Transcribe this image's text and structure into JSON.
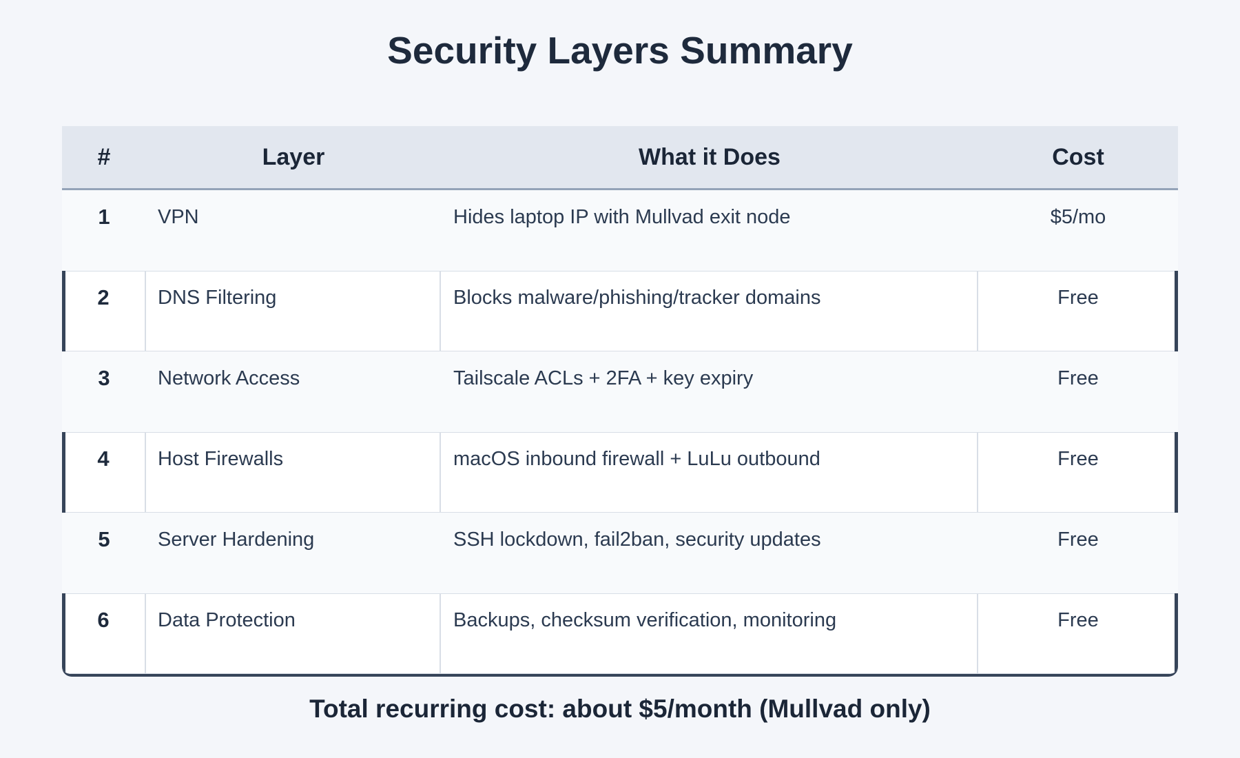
{
  "title": "Security Layers Summary",
  "table": {
    "columns": [
      "#",
      "Layer",
      "What it Does",
      "Cost"
    ],
    "rows": [
      {
        "num": "1",
        "layer": "VPN",
        "what": "Hides laptop IP with Mullvad exit node",
        "cost": "$5/mo"
      },
      {
        "num": "2",
        "layer": "DNS Filtering",
        "what": "Blocks malware/phishing/tracker domains",
        "cost": "Free"
      },
      {
        "num": "3",
        "layer": "Network Access",
        "what": "Tailscale ACLs + 2FA + key expiry",
        "cost": "Free"
      },
      {
        "num": "4",
        "layer": "Host Firewalls",
        "what": "macOS inbound firewall + LuLu outbound",
        "cost": "Free"
      },
      {
        "num": "5",
        "layer": "Server Hardening",
        "what": "SSH lockdown, fail2ban, security updates",
        "cost": "Free"
      },
      {
        "num": "6",
        "layer": "Data Protection",
        "what": "Backups, checksum verification, monitoring",
        "cost": "Free"
      }
    ]
  },
  "footer": {
    "text": "Total recurring cost: about $5/month (Mullvad only)"
  },
  "colors": {
    "page_bg": "#f4f6fa",
    "header_bg": "#e2e7ef",
    "header_border": "#94a3b8",
    "row_odd_bg": "#f8fafc",
    "row_even_bg": "#ffffff",
    "cell_border": "#d8dee6",
    "accent_dark": "#364459",
    "text_dark": "#1e2a3c"
  }
}
